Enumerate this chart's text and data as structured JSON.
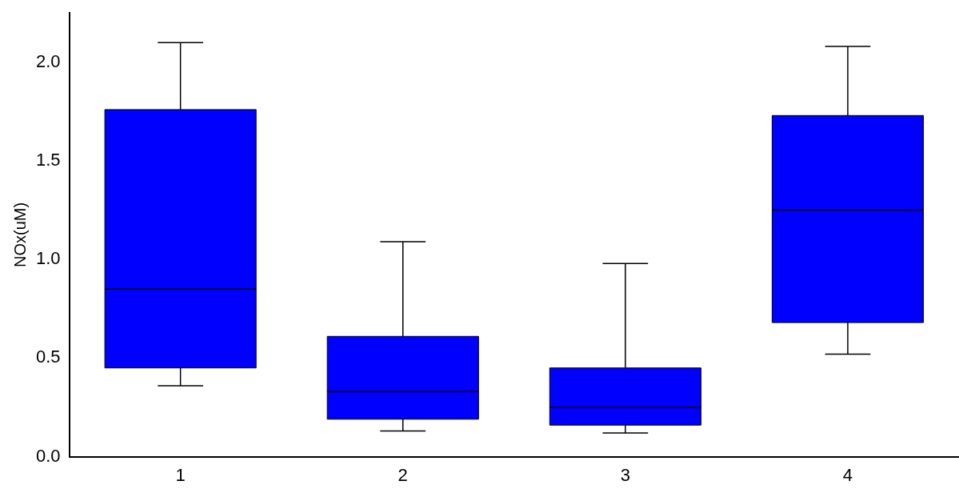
{
  "chart_data": {
    "type": "box",
    "ylabel": "NOx(uM)",
    "categories": [
      "1",
      "2",
      "3",
      "4"
    ],
    "boxes": [
      {
        "low": 0.36,
        "q1": 0.45,
        "median": 0.85,
        "q3": 1.76,
        "high": 2.1
      },
      {
        "low": 0.13,
        "q1": 0.19,
        "median": 0.33,
        "q3": 0.61,
        "high": 1.09
      },
      {
        "low": 0.12,
        "q1": 0.16,
        "median": 0.25,
        "q3": 0.45,
        "high": 0.98
      },
      {
        "low": 0.52,
        "q1": 0.68,
        "median": 1.25,
        "q3": 1.73,
        "high": 2.08
      }
    ],
    "color": "#0000ff",
    "ylim": [
      0,
      2.25
    ],
    "yticks": [
      {
        "value": 0,
        "label": "0.0"
      },
      {
        "value": 0.5,
        "label": "0.5"
      },
      {
        "value": 1,
        "label": "1.0"
      },
      {
        "value": 1.5,
        "label": "1.5"
      },
      {
        "value": 2,
        "label": "2.0"
      }
    ],
    "grid": false,
    "legend": false
  }
}
